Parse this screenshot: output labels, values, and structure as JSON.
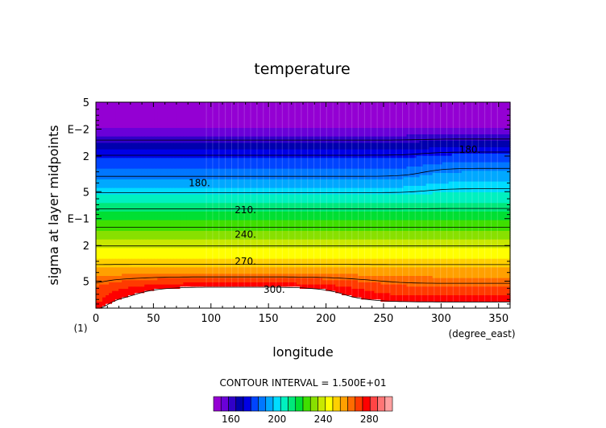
{
  "chart_data": {
    "type": "heatmap",
    "title": "temperature",
    "xlabel": "longitude",
    "ylabel": "sigma at layer midpoints",
    "x_unit": "(degree_east)",
    "y_unit_marker": "(1)",
    "xlim": [
      0,
      360
    ],
    "ylim": [
      1,
      0.005
    ],
    "y_scale": "log",
    "x_ticks": [
      "0",
      "50",
      "100",
      "150",
      "200",
      "250",
      "300",
      "350"
    ],
    "x_tick_values": [
      0,
      50,
      100,
      150,
      200,
      250,
      300,
      350
    ],
    "y_ticks": [
      "5",
      "E−2",
      "2",
      "5",
      "E−1",
      "2",
      "5"
    ],
    "y_tick_values": [
      0.005,
      0.01,
      0.02,
      0.05,
      0.1,
      0.2,
      0.5
    ],
    "contour_interval_label": "CONTOUR INTERVAL = 1.500E+01",
    "contour_labels": [
      {
        "text": "180.",
        "x": 325,
        "sigma": 0.017
      },
      {
        "text": "180.",
        "x": 90,
        "sigma": 0.04
      },
      {
        "text": "210.",
        "x": 130,
        "sigma": 0.08
      },
      {
        "text": "240.",
        "x": 130,
        "sigma": 0.15
      },
      {
        "text": "270.",
        "x": 130,
        "sigma": 0.3
      },
      {
        "text": "300.",
        "x": 155,
        "sigma": 0.62
      }
    ],
    "colorbar": {
      "min": 145,
      "max": 300,
      "step": 7.5,
      "tick_labels": [
        "160",
        "200",
        "240",
        "280"
      ],
      "tick_values": [
        160,
        200,
        240,
        280
      ],
      "colors": [
        "#9400d3",
        "#6a00d8",
        "#3000c8",
        "#0000ad",
        "#0000e5",
        "#0044ff",
        "#0077ff",
        "#00a8ff",
        "#00dcff",
        "#00f0c0",
        "#00e87a",
        "#00df33",
        "#3fdf00",
        "#88e000",
        "#c8e800",
        "#ffff00",
        "#ffd000",
        "#ffa000",
        "#ff6c00",
        "#ff3a00",
        "#ff0000",
        "#ff4545",
        "#ff7575",
        "#ffa0a0"
      ],
      "above_color": "#ffffff"
    },
    "notes": "Zonal-mean style temperature cross-section: cold (~150-180) near sigma 0.005-0.02, warming with depth to >300 near sigma 0.6-0.9 between 20 and 230 east."
  }
}
